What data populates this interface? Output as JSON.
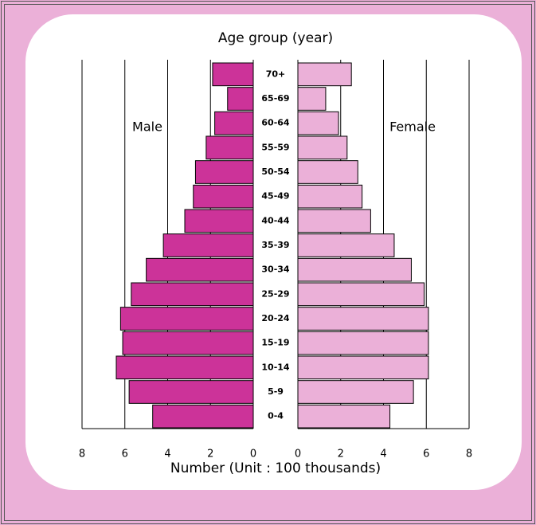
{
  "chart_data": {
    "type": "pyramid",
    "title": "Age group (year)",
    "xlabel": "Number (Unit : 100 thousands)",
    "categories": [
      "70+",
      "65-69",
      "60-64",
      "55-59",
      "50-54",
      "45-49",
      "40-44",
      "35-39",
      "30-34",
      "25-29",
      "20-24",
      "15-19",
      "10-14",
      "5-9",
      "0-4"
    ],
    "series": [
      {
        "name": "Male",
        "color": "#cc3399",
        "values": [
          1.9,
          1.2,
          1.8,
          2.2,
          2.7,
          2.8,
          3.2,
          4.2,
          5.0,
          5.7,
          6.2,
          6.1,
          6.4,
          5.8,
          4.7
        ]
      },
      {
        "name": "Female",
        "color": "#ebb0d8",
        "values": [
          2.5,
          1.3,
          1.9,
          2.3,
          2.8,
          3.0,
          3.4,
          4.5,
          5.3,
          5.9,
          6.1,
          6.1,
          6.1,
          5.4,
          4.3
        ]
      }
    ],
    "xlim": [
      0,
      8
    ],
    "xticks": [
      0,
      2,
      4,
      6,
      8
    ],
    "grid": true
  }
}
